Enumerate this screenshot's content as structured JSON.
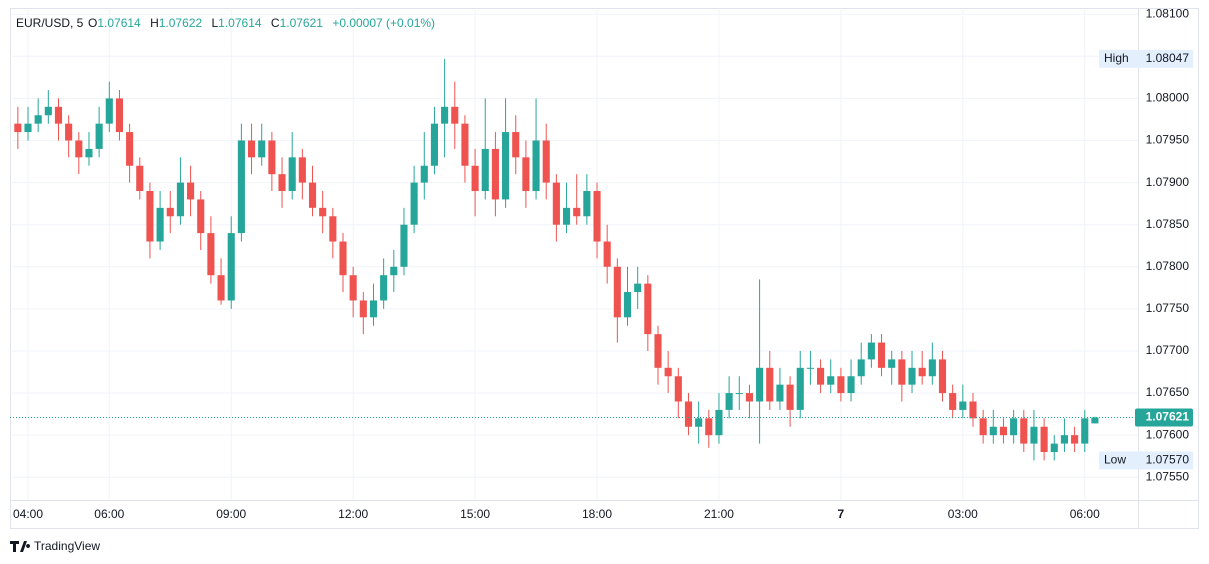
{
  "chart_data": {
    "type": "candlestick",
    "header": {
      "symbol": "EUR/USD, 5",
      "o_label": "O",
      "h_label": "H",
      "l_label": "L",
      "c_label": "C",
      "change": "+0.00007 (+0.01%)"
    },
    "brand": "TradingView",
    "up_color": "#26a69a",
    "down_color": "#ef5350",
    "grid": true,
    "xlim": [
      3.557,
      31.31
    ],
    "xticks": [
      {
        "value": 4,
        "label": "04:00"
      },
      {
        "value": 6,
        "label": "06:00"
      },
      {
        "value": 9,
        "label": "09:00"
      },
      {
        "value": 12,
        "label": "12:00"
      },
      {
        "value": 15,
        "label": "15:00"
      },
      {
        "value": 18,
        "label": "18:00"
      },
      {
        "value": 21,
        "label": "21:00"
      },
      {
        "value": 24,
        "label": "7"
      },
      {
        "value": 27,
        "label": "03:00"
      },
      {
        "value": 30,
        "label": "06:00"
      }
    ],
    "ylim": [
      1.07523,
      1.08105
    ],
    "yticks": [
      {
        "value": 1.081,
        "label": "1.08100"
      },
      {
        "value": 1.0805,
        "label": "1.08050"
      },
      {
        "value": 1.08,
        "label": "1.08000"
      },
      {
        "value": 1.0795,
        "label": "1.07950"
      },
      {
        "value": 1.079,
        "label": "1.07900"
      },
      {
        "value": 1.0785,
        "label": "1.07850"
      },
      {
        "value": 1.078,
        "label": "1.07800"
      },
      {
        "value": 1.0775,
        "label": "1.07750"
      },
      {
        "value": 1.077,
        "label": "1.07700"
      },
      {
        "value": 1.0765,
        "label": "1.07650"
      },
      {
        "value": 1.076,
        "label": "1.07600"
      },
      {
        "value": 1.0755,
        "label": "1.07550"
      }
    ],
    "markers": [
      {
        "name": "High",
        "value": 1.08047,
        "label": "1.08047"
      },
      {
        "name": "Low",
        "value": 1.0757,
        "label": "1.07570"
      }
    ],
    "last_price": {
      "value": 1.07621,
      "label": "1.07621"
    },
    "x": [
      3.75,
      4,
      4.25,
      4.5,
      4.75,
      5,
      5.25,
      5.5,
      5.75,
      6,
      6.25,
      6.5,
      6.75,
      7,
      7.25,
      7.5,
      7.75,
      8,
      8.25,
      8.5,
      8.75,
      9,
      9.25,
      9.5,
      9.75,
      10,
      10.25,
      10.5,
      10.75,
      11,
      11.25,
      11.5,
      11.75,
      12,
      12.25,
      12.5,
      12.75,
      13,
      13.25,
      13.5,
      13.75,
      14,
      14.25,
      14.5,
      14.75,
      15,
      15.25,
      15.5,
      15.75,
      16,
      16.25,
      16.5,
      16.75,
      17,
      17.25,
      17.5,
      17.75,
      18,
      18.25,
      18.5,
      18.75,
      19,
      19.25,
      19.5,
      19.75,
      20,
      20.25,
      20.5,
      20.75,
      21,
      21.25,
      21.5,
      21.75,
      22,
      22.25,
      22.5,
      22.75,
      23,
      23.25,
      23.5,
      23.75,
      24,
      24.25,
      24.5,
      24.75,
      25,
      25.25,
      25.5,
      25.75,
      26,
      26.25,
      26.5,
      26.75,
      27,
      27.25,
      27.5,
      27.75,
      28,
      28.25,
      28.5,
      28.75,
      29,
      29.25,
      29.5,
      29.75,
      30,
      30.25
    ],
    "open": [
      1.0797,
      1.0796,
      1.0797,
      1.0798,
      1.0799,
      1.0797,
      1.0795,
      1.0793,
      1.0794,
      1.0797,
      1.08,
      1.0796,
      1.0792,
      1.0789,
      1.0783,
      1.0787,
      1.0786,
      1.079,
      1.0788,
      1.0784,
      1.0779,
      1.0776,
      1.0784,
      1.0795,
      1.0793,
      1.0795,
      1.0791,
      1.0789,
      1.0793,
      1.079,
      1.0787,
      1.0786,
      1.0783,
      1.0779,
      1.0776,
      1.0774,
      1.0776,
      1.0779,
      1.078,
      1.0785,
      1.079,
      1.0792,
      1.0797,
      1.0799,
      1.0797,
      1.0792,
      1.0789,
      1.0794,
      1.0788,
      1.0796,
      1.0793,
      1.0789,
      1.0795,
      1.079,
      1.0785,
      1.0787,
      1.0786,
      1.0789,
      1.0783,
      1.078,
      1.0774,
      1.0777,
      1.0778,
      1.0772,
      1.0768,
      1.0767,
      1.0764,
      1.0761,
      1.0762,
      1.076,
      1.0763,
      1.0765,
      1.0765,
      1.0764,
      1.0768,
      1.0764,
      1.0766,
      1.0763,
      1.0768,
      1.0768,
      1.0766,
      1.0767,
      1.0765,
      1.0767,
      1.0769,
      1.0771,
      1.0768,
      1.0769,
      1.0766,
      1.0768,
      1.0767,
      1.0769,
      1.0765,
      1.0763,
      1.0764,
      1.0762,
      1.076,
      1.0761,
      1.076,
      1.0762,
      1.0759,
      1.0761,
      1.0758,
      1.0759,
      1.076,
      1.0759,
      1.07614
    ],
    "high": [
      1.0799,
      1.0799,
      1.08,
      1.0801,
      1.08,
      1.0798,
      1.0796,
      1.0796,
      1.0799,
      1.0802,
      1.0801,
      1.0797,
      1.0793,
      1.079,
      1.0789,
      1.0789,
      1.0793,
      1.0792,
      1.0789,
      1.0786,
      1.0781,
      1.0786,
      1.0797,
      1.0797,
      1.0797,
      1.0796,
      1.0793,
      1.0796,
      1.0794,
      1.0792,
      1.0789,
      1.0787,
      1.0784,
      1.078,
      1.0777,
      1.0778,
      1.0781,
      1.0782,
      1.0787,
      1.0792,
      1.0796,
      1.0799,
      1.08047,
      1.0802,
      1.0798,
      1.0794,
      1.08,
      1.0796,
      1.08,
      1.0798,
      1.0795,
      1.08,
      1.0797,
      1.0791,
      1.079,
      1.0791,
      1.0791,
      1.079,
      1.0785,
      1.0781,
      1.078,
      1.078,
      1.0779,
      1.0773,
      1.077,
      1.0768,
      1.0765,
      1.0764,
      1.0763,
      1.0765,
      1.0767,
      1.0767,
      1.0766,
      1.07785,
      1.077,
      1.0768,
      1.0767,
      1.077,
      1.077,
      1.0769,
      1.0769,
      1.0768,
      1.0769,
      1.0771,
      1.0772,
      1.0772,
      1.077,
      1.077,
      1.077,
      1.077,
      1.0771,
      1.077,
      1.0766,
      1.0766,
      1.0765,
      1.0763,
      1.0763,
      1.0762,
      1.0763,
      1.0763,
      1.0763,
      1.0762,
      1.076,
      1.0762,
      1.0761,
      1.0763,
      1.07622
    ],
    "low": [
      1.0794,
      1.0795,
      1.0796,
      1.0797,
      1.0795,
      1.0793,
      1.0791,
      1.0792,
      1.0793,
      1.0796,
      1.0795,
      1.079,
      1.0788,
      1.0781,
      1.0782,
      1.0784,
      1.0785,
      1.0786,
      1.0782,
      1.0778,
      1.07755,
      1.0775,
      1.0783,
      1.0791,
      1.0792,
      1.0789,
      1.0787,
      1.0788,
      1.0788,
      1.0786,
      1.0784,
      1.0781,
      1.0777,
      1.0774,
      1.0772,
      1.0773,
      1.0775,
      1.0777,
      1.0779,
      1.0784,
      1.0788,
      1.0791,
      1.0793,
      1.0794,
      1.079,
      1.0786,
      1.0788,
      1.0786,
      1.0787,
      1.0791,
      1.0787,
      1.0788,
      1.0788,
      1.0783,
      1.0784,
      1.0785,
      1.0785,
      1.0781,
      1.0778,
      1.0771,
      1.0773,
      1.0775,
      1.077,
      1.0766,
      1.0765,
      1.0762,
      1.076,
      1.0759,
      1.07585,
      1.0759,
      1.0762,
      1.0763,
      1.0762,
      1.0759,
      1.0763,
      1.0763,
      1.0761,
      1.0762,
      1.0766,
      1.0765,
      1.0765,
      1.0764,
      1.0764,
      1.0766,
      1.0768,
      1.0767,
      1.0766,
      1.0764,
      1.0765,
      1.0766,
      1.0766,
      1.0764,
      1.0762,
      1.0762,
      1.0761,
      1.0759,
      1.0759,
      1.0759,
      1.0759,
      1.0758,
      1.0757,
      1.0757,
      1.0757,
      1.0758,
      1.0758,
      1.0758,
      1.07614
    ],
    "close": [
      1.0796,
      1.0797,
      1.0798,
      1.0799,
      1.0797,
      1.0795,
      1.0793,
      1.0794,
      1.0797,
      1.08,
      1.0796,
      1.0792,
      1.0789,
      1.0783,
      1.0787,
      1.0786,
      1.079,
      1.0788,
      1.0784,
      1.0779,
      1.0776,
      1.0784,
      1.0795,
      1.0793,
      1.0795,
      1.0791,
      1.0789,
      1.0793,
      1.079,
      1.0787,
      1.0786,
      1.0783,
      1.0779,
      1.0776,
      1.0774,
      1.0776,
      1.0779,
      1.078,
      1.0785,
      1.079,
      1.0792,
      1.0797,
      1.0799,
      1.0797,
      1.0792,
      1.0789,
      1.0794,
      1.0788,
      1.0796,
      1.0793,
      1.0789,
      1.0795,
      1.079,
      1.0785,
      1.0787,
      1.0786,
      1.0789,
      1.0783,
      1.078,
      1.0774,
      1.0777,
      1.0778,
      1.0772,
      1.0768,
      1.0767,
      1.0764,
      1.0761,
      1.0762,
      1.076,
      1.0763,
      1.0765,
      1.0765,
      1.0764,
      1.0768,
      1.0764,
      1.0766,
      1.0763,
      1.0768,
      1.0768,
      1.0766,
      1.0767,
      1.0765,
      1.0767,
      1.0769,
      1.0771,
      1.0768,
      1.0769,
      1.0766,
      1.0768,
      1.0767,
      1.0769,
      1.0765,
      1.0763,
      1.0764,
      1.0762,
      1.076,
      1.0761,
      1.076,
      1.0762,
      1.0759,
      1.0761,
      1.0758,
      1.0759,
      1.076,
      1.0759,
      1.0762,
      1.07621
    ]
  }
}
